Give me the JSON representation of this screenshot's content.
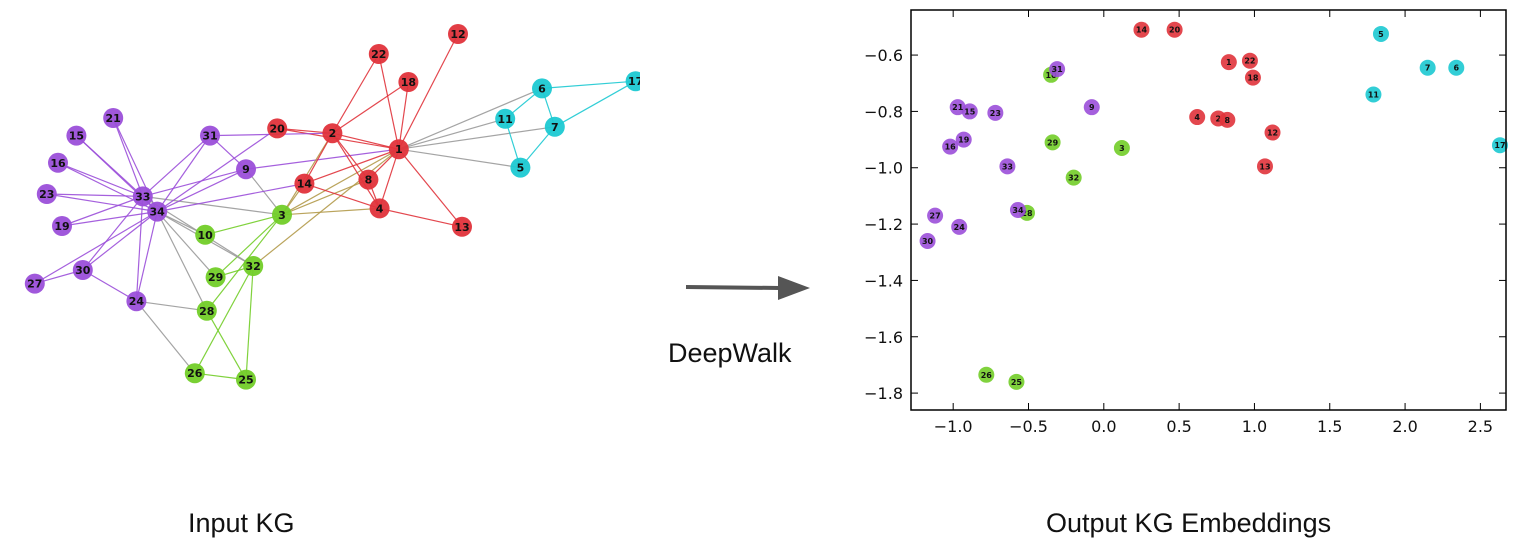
{
  "labels": {
    "left_caption": "Input KG",
    "right_caption": "Output KG Embeddings",
    "method": "DeepWalk"
  },
  "colors": {
    "purple": "#9b4fd9",
    "red": "#e0333b",
    "green": "#72cd28",
    "cyan": "#1cc9d2",
    "edge_gray": "#9a9a9a",
    "edge_olive": "#b39a4a"
  },
  "graph": {
    "nodes": [
      {
        "id": "1",
        "group": "red"
      },
      {
        "id": "2",
        "group": "red"
      },
      {
        "id": "3",
        "group": "green"
      },
      {
        "id": "4",
        "group": "red"
      },
      {
        "id": "5",
        "group": "cyan"
      },
      {
        "id": "6",
        "group": "cyan"
      },
      {
        "id": "7",
        "group": "cyan"
      },
      {
        "id": "8",
        "group": "red"
      },
      {
        "id": "9",
        "group": "purple"
      },
      {
        "id": "10",
        "group": "green"
      },
      {
        "id": "11",
        "group": "cyan"
      },
      {
        "id": "12",
        "group": "red"
      },
      {
        "id": "13",
        "group": "red"
      },
      {
        "id": "14",
        "group": "red"
      },
      {
        "id": "15",
        "group": "purple"
      },
      {
        "id": "16",
        "group": "purple"
      },
      {
        "id": "17",
        "group": "cyan"
      },
      {
        "id": "18",
        "group": "red"
      },
      {
        "id": "19",
        "group": "purple"
      },
      {
        "id": "20",
        "group": "red"
      },
      {
        "id": "21",
        "group": "purple"
      },
      {
        "id": "22",
        "group": "red"
      },
      {
        "id": "23",
        "group": "purple"
      },
      {
        "id": "24",
        "group": "purple"
      },
      {
        "id": "25",
        "group": "green"
      },
      {
        "id": "26",
        "group": "green"
      },
      {
        "id": "27",
        "group": "purple"
      },
      {
        "id": "28",
        "group": "green"
      },
      {
        "id": "29",
        "group": "green"
      },
      {
        "id": "30",
        "group": "purple"
      },
      {
        "id": "31",
        "group": "purple"
      },
      {
        "id": "32",
        "group": "green"
      },
      {
        "id": "33",
        "group": "purple"
      },
      {
        "id": "34",
        "group": "purple"
      }
    ],
    "edges": [
      [
        "1",
        "2"
      ],
      [
        "1",
        "3"
      ],
      [
        "1",
        "4"
      ],
      [
        "1",
        "5"
      ],
      [
        "1",
        "6"
      ],
      [
        "1",
        "7"
      ],
      [
        "1",
        "8"
      ],
      [
        "1",
        "9"
      ],
      [
        "1",
        "11"
      ],
      [
        "1",
        "12"
      ],
      [
        "1",
        "13"
      ],
      [
        "1",
        "14"
      ],
      [
        "1",
        "18"
      ],
      [
        "1",
        "20"
      ],
      [
        "1",
        "22"
      ],
      [
        "1",
        "32"
      ],
      [
        "2",
        "3"
      ],
      [
        "2",
        "4"
      ],
      [
        "2",
        "8"
      ],
      [
        "2",
        "14"
      ],
      [
        "2",
        "18"
      ],
      [
        "2",
        "20"
      ],
      [
        "2",
        "22"
      ],
      [
        "2",
        "31"
      ],
      [
        "3",
        "4"
      ],
      [
        "3",
        "8"
      ],
      [
        "3",
        "9"
      ],
      [
        "3",
        "10"
      ],
      [
        "3",
        "14"
      ],
      [
        "3",
        "28"
      ],
      [
        "3",
        "29"
      ],
      [
        "3",
        "33"
      ],
      [
        "4",
        "8"
      ],
      [
        "4",
        "13"
      ],
      [
        "4",
        "14"
      ],
      [
        "5",
        "7"
      ],
      [
        "5",
        "11"
      ],
      [
        "6",
        "7"
      ],
      [
        "6",
        "11"
      ],
      [
        "6",
        "17"
      ],
      [
        "7",
        "17"
      ],
      [
        "9",
        "31"
      ],
      [
        "9",
        "33"
      ],
      [
        "9",
        "34"
      ],
      [
        "10",
        "34"
      ],
      [
        "14",
        "34"
      ],
      [
        "15",
        "33"
      ],
      [
        "15",
        "34"
      ],
      [
        "16",
        "33"
      ],
      [
        "16",
        "34"
      ],
      [
        "19",
        "33"
      ],
      [
        "19",
        "34"
      ],
      [
        "20",
        "34"
      ],
      [
        "21",
        "33"
      ],
      [
        "21",
        "34"
      ],
      [
        "23",
        "33"
      ],
      [
        "23",
        "34"
      ],
      [
        "24",
        "26"
      ],
      [
        "24",
        "28"
      ],
      [
        "24",
        "30"
      ],
      [
        "24",
        "33"
      ],
      [
        "24",
        "34"
      ],
      [
        "25",
        "26"
      ],
      [
        "25",
        "28"
      ],
      [
        "25",
        "32"
      ],
      [
        "26",
        "32"
      ],
      [
        "27",
        "30"
      ],
      [
        "27",
        "34"
      ],
      [
        "28",
        "34"
      ],
      [
        "29",
        "32"
      ],
      [
        "29",
        "34"
      ],
      [
        "30",
        "33"
      ],
      [
        "30",
        "34"
      ],
      [
        "31",
        "33"
      ],
      [
        "31",
        "34"
      ],
      [
        "32",
        "33"
      ],
      [
        "32",
        "34"
      ],
      [
        "33",
        "34"
      ]
    ]
  },
  "chart_data": {
    "type": "scatter",
    "xlim": [
      -1.28,
      2.67
    ],
    "ylim": [
      -1.86,
      -0.44
    ],
    "x_ticks": [
      -1.0,
      -0.5,
      0.0,
      0.5,
      1.0,
      1.5,
      2.0,
      2.5
    ],
    "x_tick_labels": [
      "−1.0",
      "−0.5",
      "0.0",
      "0.5",
      "1.0",
      "1.5",
      "2.0",
      "2.5"
    ],
    "y_ticks": [
      -0.6,
      -0.8,
      -1.0,
      -1.2,
      -1.4,
      -1.6,
      -1.8
    ],
    "y_tick_labels": [
      "−0.6",
      "−0.8",
      "−1.0",
      "−1.2",
      "−1.4",
      "−1.6",
      "−1.8"
    ],
    "grid": false,
    "points": [
      {
        "label": "1",
        "group": "red",
        "x": 0.83,
        "y": -0.625
      },
      {
        "label": "2",
        "group": "red",
        "x": 0.76,
        "y": -0.825
      },
      {
        "label": "3",
        "group": "green",
        "x": 0.12,
        "y": -0.93
      },
      {
        "label": "4",
        "group": "red",
        "x": 0.62,
        "y": -0.82
      },
      {
        "label": "5",
        "group": "cyan",
        "x": 1.84,
        "y": -0.525
      },
      {
        "label": "6",
        "group": "cyan",
        "x": 2.34,
        "y": -0.645
      },
      {
        "label": "7",
        "group": "cyan",
        "x": 2.15,
        "y": -0.645
      },
      {
        "label": "8",
        "group": "red",
        "x": 0.82,
        "y": -0.83
      },
      {
        "label": "9",
        "group": "purple",
        "x": -0.08,
        "y": -0.785
      },
      {
        "label": "10",
        "group": "green",
        "x": -0.35,
        "y": -0.67
      },
      {
        "label": "11",
        "group": "cyan",
        "x": 1.79,
        "y": -0.74
      },
      {
        "label": "12",
        "group": "red",
        "x": 1.12,
        "y": -0.875
      },
      {
        "label": "13",
        "group": "red",
        "x": 1.07,
        "y": -0.995
      },
      {
        "label": "14",
        "group": "red",
        "x": 0.25,
        "y": -0.51
      },
      {
        "label": "15",
        "group": "purple",
        "x": -0.89,
        "y": -0.8
      },
      {
        "label": "16",
        "group": "purple",
        "x": -1.02,
        "y": -0.925
      },
      {
        "label": "17",
        "group": "cyan",
        "x": 2.63,
        "y": -0.92
      },
      {
        "label": "18",
        "group": "red",
        "x": 0.99,
        "y": -0.68
      },
      {
        "label": "19",
        "group": "purple",
        "x": -0.93,
        "y": -0.9
      },
      {
        "label": "20",
        "group": "red",
        "x": 0.47,
        "y": -0.51
      },
      {
        "label": "21",
        "group": "purple",
        "x": -0.97,
        "y": -0.785
      },
      {
        "label": "22",
        "group": "red",
        "x": 0.97,
        "y": -0.62
      },
      {
        "label": "23",
        "group": "purple",
        "x": -0.72,
        "y": -0.805
      },
      {
        "label": "24",
        "group": "purple",
        "x": -0.96,
        "y": -1.21
      },
      {
        "label": "25",
        "group": "green",
        "x": -0.58,
        "y": -1.76
      },
      {
        "label": "26",
        "group": "green",
        "x": -0.78,
        "y": -1.735
      },
      {
        "label": "27",
        "group": "purple",
        "x": -1.12,
        "y": -1.17
      },
      {
        "label": "28",
        "group": "green",
        "x": -0.51,
        "y": -1.16
      },
      {
        "label": "29",
        "group": "green",
        "x": -0.34,
        "y": -0.91
      },
      {
        "label": "30",
        "group": "purple",
        "x": -1.17,
        "y": -1.26
      },
      {
        "label": "31",
        "group": "purple",
        "x": -0.31,
        "y": -0.65
      },
      {
        "label": "32",
        "group": "green",
        "x": -0.2,
        "y": -1.035
      },
      {
        "label": "33",
        "group": "purple",
        "x": -0.64,
        "y": -0.995
      },
      {
        "label": "34",
        "group": "purple",
        "x": -0.57,
        "y": -1.15
      }
    ]
  }
}
